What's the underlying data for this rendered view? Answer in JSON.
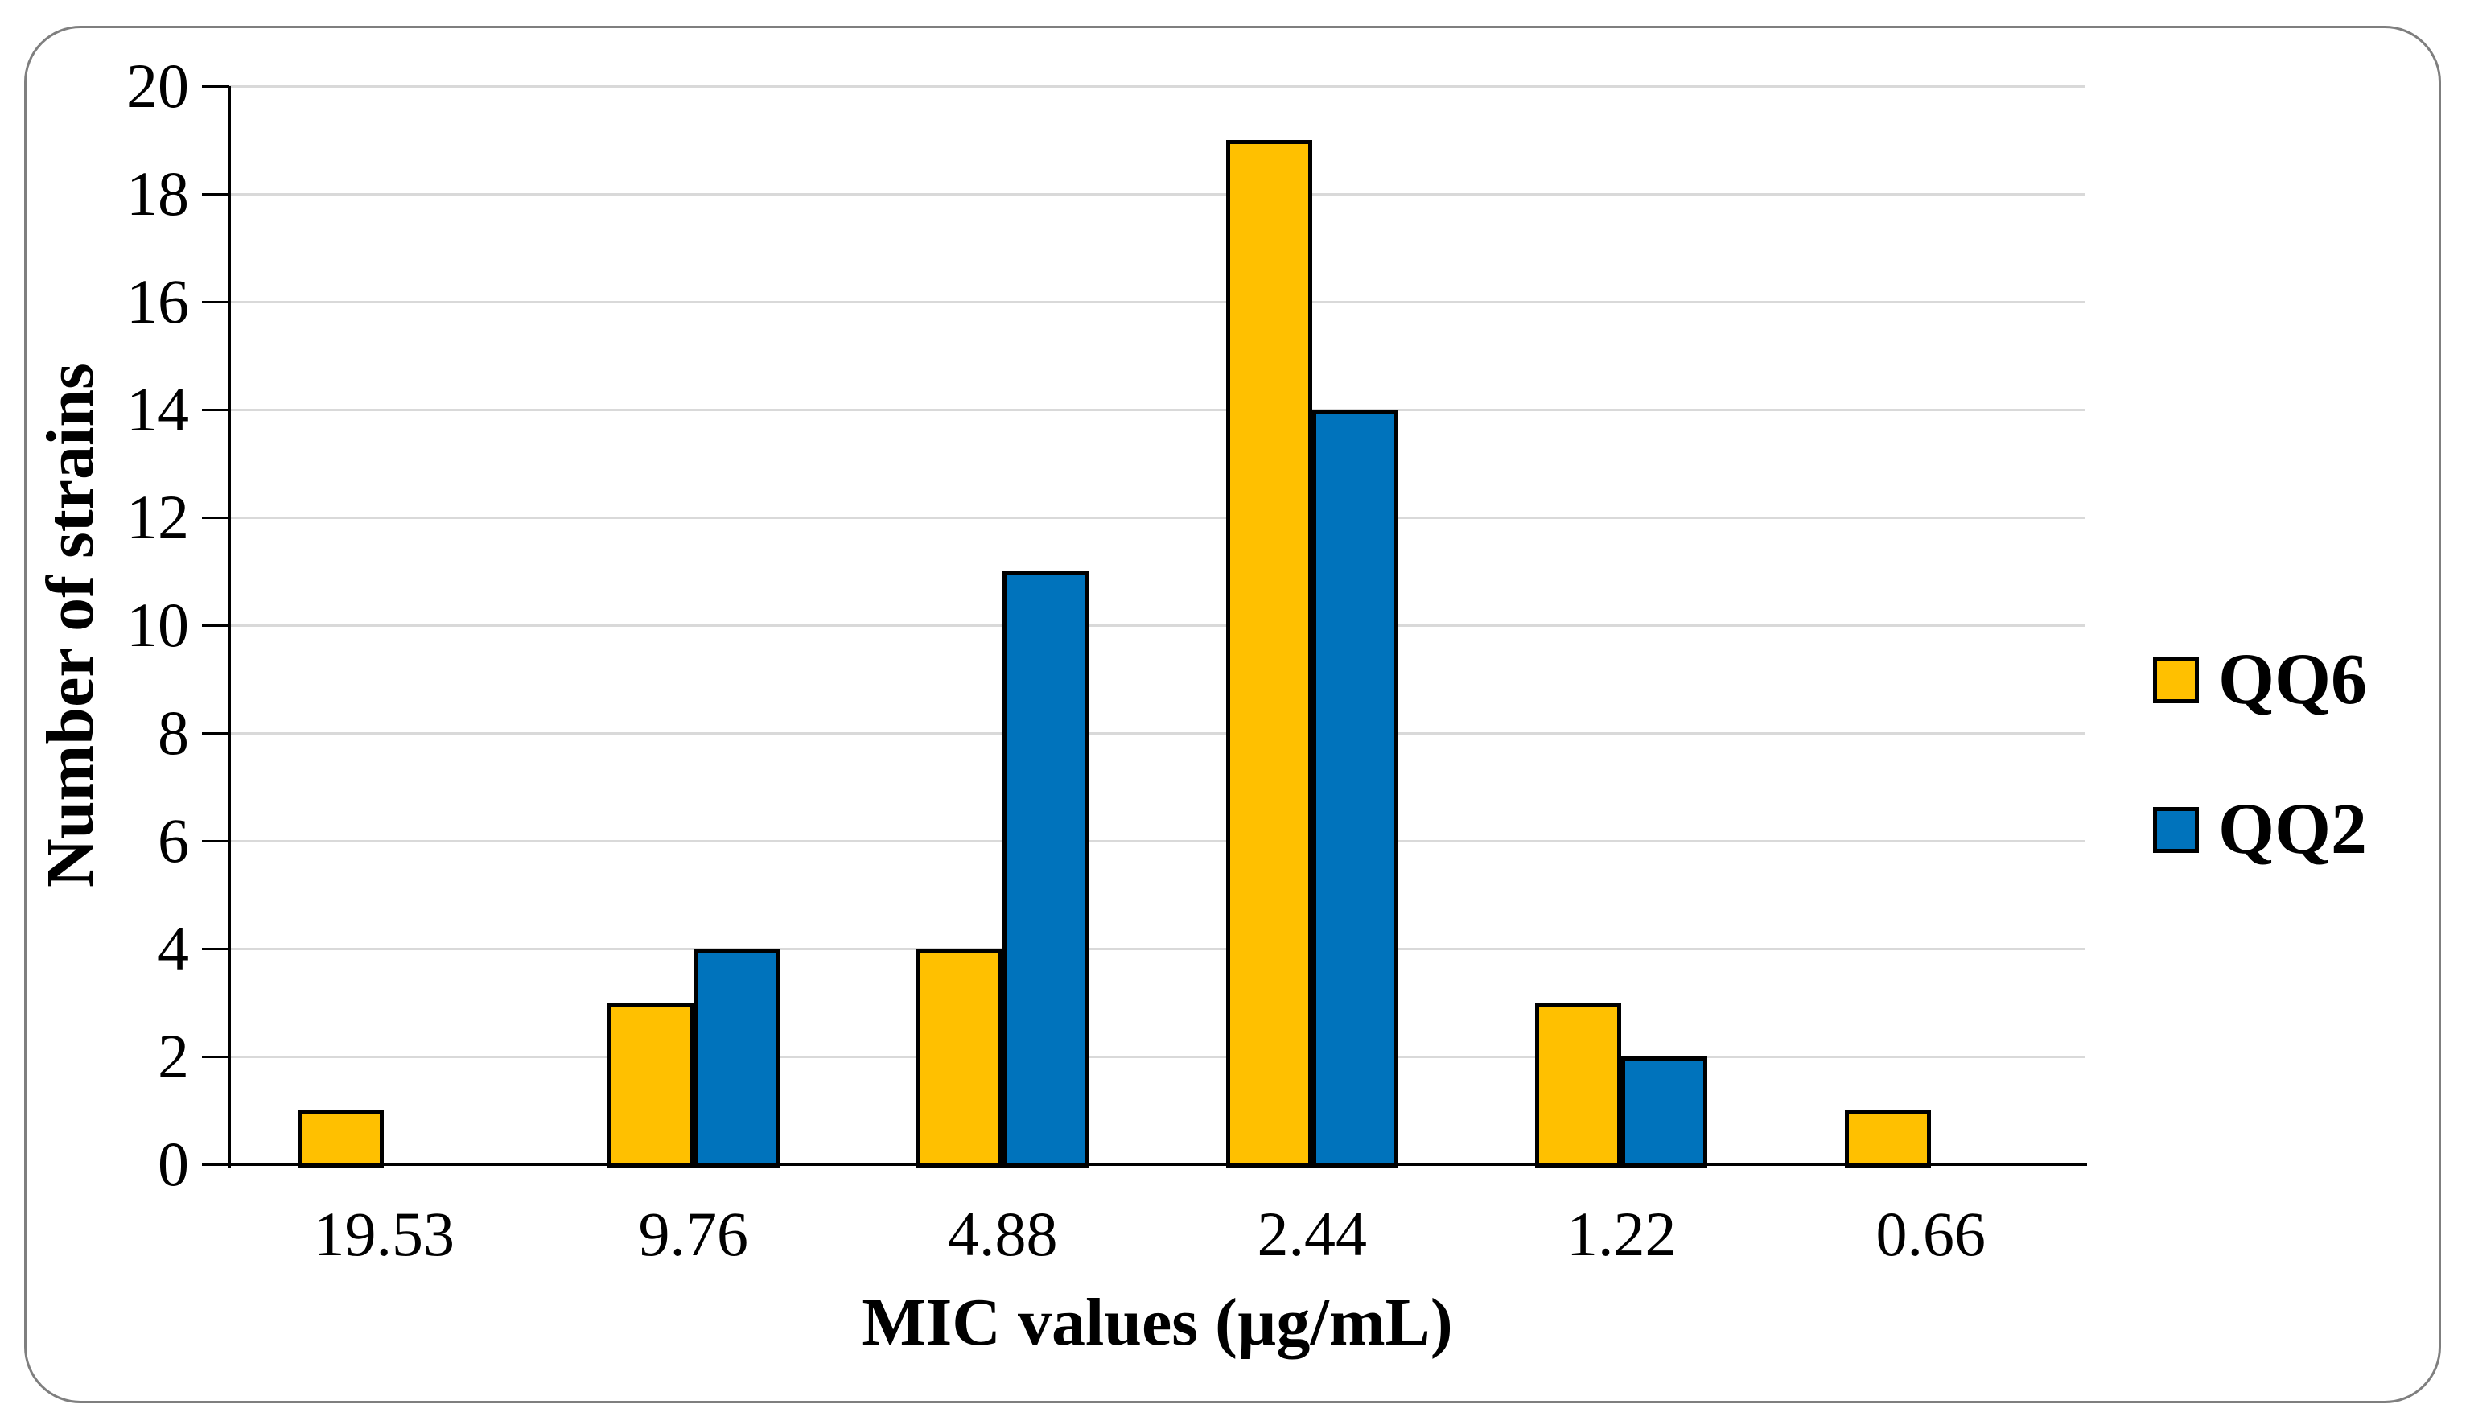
{
  "chart_data": {
    "type": "bar",
    "title": "",
    "xlabel": "MIC values (µg/mL)",
    "ylabel": "Number of strains",
    "categories": [
      "19.53",
      "9.76",
      "4.88",
      "2.44",
      "1.22",
      "0.66"
    ],
    "series": [
      {
        "name": "QQ6",
        "color": "#FFC000",
        "values": [
          1,
          3,
          4,
          19,
          3,
          1
        ]
      },
      {
        "name": "QQ2",
        "color": "#0073BC",
        "values": [
          0,
          4,
          11,
          14,
          2,
          0
        ]
      }
    ],
    "ylim": [
      0,
      20
    ],
    "yticks": [
      0,
      2,
      4,
      6,
      8,
      10,
      12,
      14,
      16,
      18,
      20
    ],
    "grid": true,
    "legend_position": "right",
    "legend_labels": [
      "QQ6",
      "QQ2"
    ],
    "colors": {
      "bar_border": "#000000",
      "gridline": "#D9D9D9",
      "axis": "#000000",
      "figure_border": "#7F7F7F",
      "background": "#FFFFFF",
      "text": "#000000"
    }
  }
}
